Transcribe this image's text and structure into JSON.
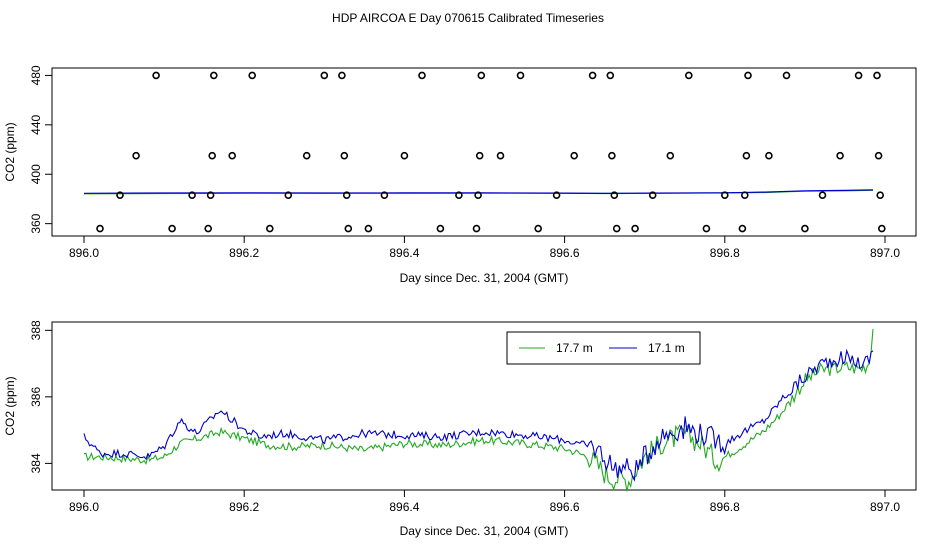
{
  "title": "HDP AIRCOA E  Day 070615  Calibrated Timeseries",
  "chart_data": [
    {
      "type": "scatter",
      "xlabel": "Day since Dec. 31, 2004 (GMT)",
      "ylabel": "CO2 (ppm)",
      "xlim": [
        896.0,
        897.0
      ],
      "ylim": [
        350,
        486
      ],
      "x_ticks": [
        "896.0",
        "896.2",
        "896.4",
        "896.6",
        "896.8",
        "897.0"
      ],
      "y_ticks": [
        "360",
        "400",
        "440",
        "480"
      ],
      "colors": {
        "series_17_7": "#22aa22",
        "series_17_1": "#0000cc",
        "markers": "#000000"
      },
      "points": [
        [
          896.02,
          356
        ],
        [
          896.045,
          383
        ],
        [
          896.065,
          415
        ],
        [
          896.09,
          480
        ],
        [
          896.11,
          356
        ],
        [
          896.135,
          383
        ],
        [
          896.155,
          356
        ],
        [
          896.158,
          383
        ],
        [
          896.16,
          415
        ],
        [
          896.162,
          480
        ],
        [
          896.185,
          415
        ],
        [
          896.21,
          480
        ],
        [
          896.232,
          356
        ],
        [
          896.255,
          383
        ],
        [
          896.278,
          415
        ],
        [
          896.3,
          480
        ],
        [
          896.322,
          480
        ],
        [
          896.325,
          415
        ],
        [
          896.328,
          383
        ],
        [
          896.33,
          356
        ],
        [
          896.355,
          356
        ],
        [
          896.375,
          383
        ],
        [
          896.4,
          415
        ],
        [
          896.422,
          480
        ],
        [
          896.445,
          356
        ],
        [
          896.468,
          383
        ],
        [
          896.49,
          356
        ],
        [
          896.492,
          383
        ],
        [
          896.494,
          415
        ],
        [
          896.496,
          480
        ],
        [
          896.52,
          415
        ],
        [
          896.545,
          480
        ],
        [
          896.567,
          356
        ],
        [
          896.59,
          383
        ],
        [
          896.612,
          415
        ],
        [
          896.635,
          480
        ],
        [
          896.657,
          480
        ],
        [
          896.659,
          415
        ],
        [
          896.662,
          383
        ],
        [
          896.665,
          356
        ],
        [
          896.688,
          356
        ],
        [
          896.71,
          383
        ],
        [
          896.732,
          415
        ],
        [
          896.755,
          480
        ],
        [
          896.777,
          356
        ],
        [
          896.8,
          383
        ],
        [
          896.822,
          356
        ],
        [
          896.825,
          383
        ],
        [
          896.827,
          415
        ],
        [
          896.829,
          480
        ],
        [
          896.855,
          415
        ],
        [
          896.877,
          480
        ],
        [
          896.9,
          356
        ],
        [
          896.922,
          383
        ],
        [
          896.944,
          415
        ],
        [
          896.967,
          480
        ],
        [
          896.99,
          480
        ],
        [
          896.992,
          415
        ],
        [
          896.994,
          383
        ],
        [
          896.996,
          356
        ]
      ],
      "lines": [
        {
          "name": "",
          "color": "green",
          "x": [
            896.0,
            896.1,
            896.2,
            896.3,
            896.4,
            896.5,
            896.6,
            896.65,
            896.7,
            896.8,
            896.85,
            896.9,
            896.95,
            896.985
          ],
          "y": [
            384.2,
            384.4,
            384.6,
            384.6,
            384.6,
            384.7,
            384.6,
            384.4,
            384.6,
            384.9,
            385.2,
            386.3,
            386.6,
            387.0
          ]
        },
        {
          "name": "",
          "color": "blue",
          "x": [
            896.0,
            896.1,
            896.2,
            896.3,
            896.4,
            896.5,
            896.6,
            896.65,
            896.7,
            896.8,
            896.85,
            896.9,
            896.95,
            896.985
          ],
          "y": [
            384.6,
            384.8,
            385.0,
            384.8,
            384.9,
            384.9,
            384.7,
            384.5,
            384.7,
            385.0,
            385.5,
            386.6,
            386.9,
            387.3
          ]
        }
      ]
    },
    {
      "type": "line",
      "xlabel": "Day since Dec. 31, 2004 (GMT)",
      "ylabel": "CO2 (ppm)",
      "xlim": [
        896.0,
        897.0
      ],
      "ylim": [
        383.2,
        388.25
      ],
      "x_ticks": [
        "896.0",
        "896.2",
        "896.4",
        "896.6",
        "896.8",
        "897.0"
      ],
      "y_ticks": [
        "384",
        "386",
        "388"
      ],
      "legend_position": "top-right",
      "series": [
        {
          "name": "17.7 m",
          "color": "#22aa22",
          "knots": [
            [
              896.0,
              384.2
            ],
            [
              896.02,
              384.2
            ],
            [
              896.05,
              384.15
            ],
            [
              896.08,
              384.1
            ],
            [
              896.1,
              384.2
            ],
            [
              896.12,
              384.6
            ],
            [
              896.15,
              384.8
            ],
            [
              896.17,
              384.95
            ],
            [
              896.2,
              384.75
            ],
            [
              896.23,
              384.55
            ],
            [
              896.26,
              384.5
            ],
            [
              896.3,
              384.55
            ],
            [
              896.35,
              384.4
            ],
            [
              896.4,
              384.6
            ],
            [
              896.45,
              384.55
            ],
            [
              896.5,
              384.7
            ],
            [
              896.55,
              384.6
            ],
            [
              896.6,
              384.45
            ],
            [
              896.63,
              384.2
            ],
            [
              896.655,
              383.6
            ],
            [
              896.68,
              383.5
            ],
            [
              896.7,
              384.2
            ],
            [
              896.72,
              384.6
            ],
            [
              896.75,
              384.9
            ],
            [
              896.77,
              384.6
            ],
            [
              896.79,
              384.1
            ],
            [
              896.8,
              384.2
            ],
            [
              896.82,
              384.5
            ],
            [
              896.85,
              385.0
            ],
            [
              896.87,
              385.5
            ],
            [
              896.9,
              386.5
            ],
            [
              896.92,
              386.8
            ],
            [
              896.95,
              386.9
            ],
            [
              896.97,
              386.85
            ],
            [
              896.98,
              387.0
            ],
            [
              896.985,
              388.05
            ]
          ]
        },
        {
          "name": "17.1 m",
          "color": "#0000cc",
          "knots": [
            [
              896.0,
              384.8
            ],
            [
              896.02,
              384.3
            ],
            [
              896.05,
              384.3
            ],
            [
              896.08,
              384.2
            ],
            [
              896.1,
              384.5
            ],
            [
              896.12,
              385.3
            ],
            [
              896.14,
              384.9
            ],
            [
              896.17,
              385.6
            ],
            [
              896.2,
              385.0
            ],
            [
              896.22,
              384.8
            ],
            [
              896.25,
              384.9
            ],
            [
              896.3,
              384.7
            ],
            [
              896.35,
              384.9
            ],
            [
              896.4,
              384.85
            ],
            [
              896.45,
              384.8
            ],
            [
              896.5,
              384.95
            ],
            [
              896.55,
              384.85
            ],
            [
              896.6,
              384.7
            ],
            [
              896.64,
              384.45
            ],
            [
              896.66,
              383.9
            ],
            [
              896.69,
              383.8
            ],
            [
              896.7,
              384.2
            ],
            [
              896.72,
              384.8
            ],
            [
              896.75,
              385.1
            ],
            [
              896.78,
              384.8
            ],
            [
              896.8,
              384.6
            ],
            [
              896.82,
              384.9
            ],
            [
              896.85,
              385.3
            ],
            [
              896.87,
              385.9
            ],
            [
              896.9,
              386.6
            ],
            [
              896.92,
              387.0
            ],
            [
              896.95,
              387.2
            ],
            [
              896.97,
              387.0
            ],
            [
              896.98,
              387.1
            ],
            [
              896.985,
              387.4
            ]
          ]
        }
      ]
    }
  ]
}
